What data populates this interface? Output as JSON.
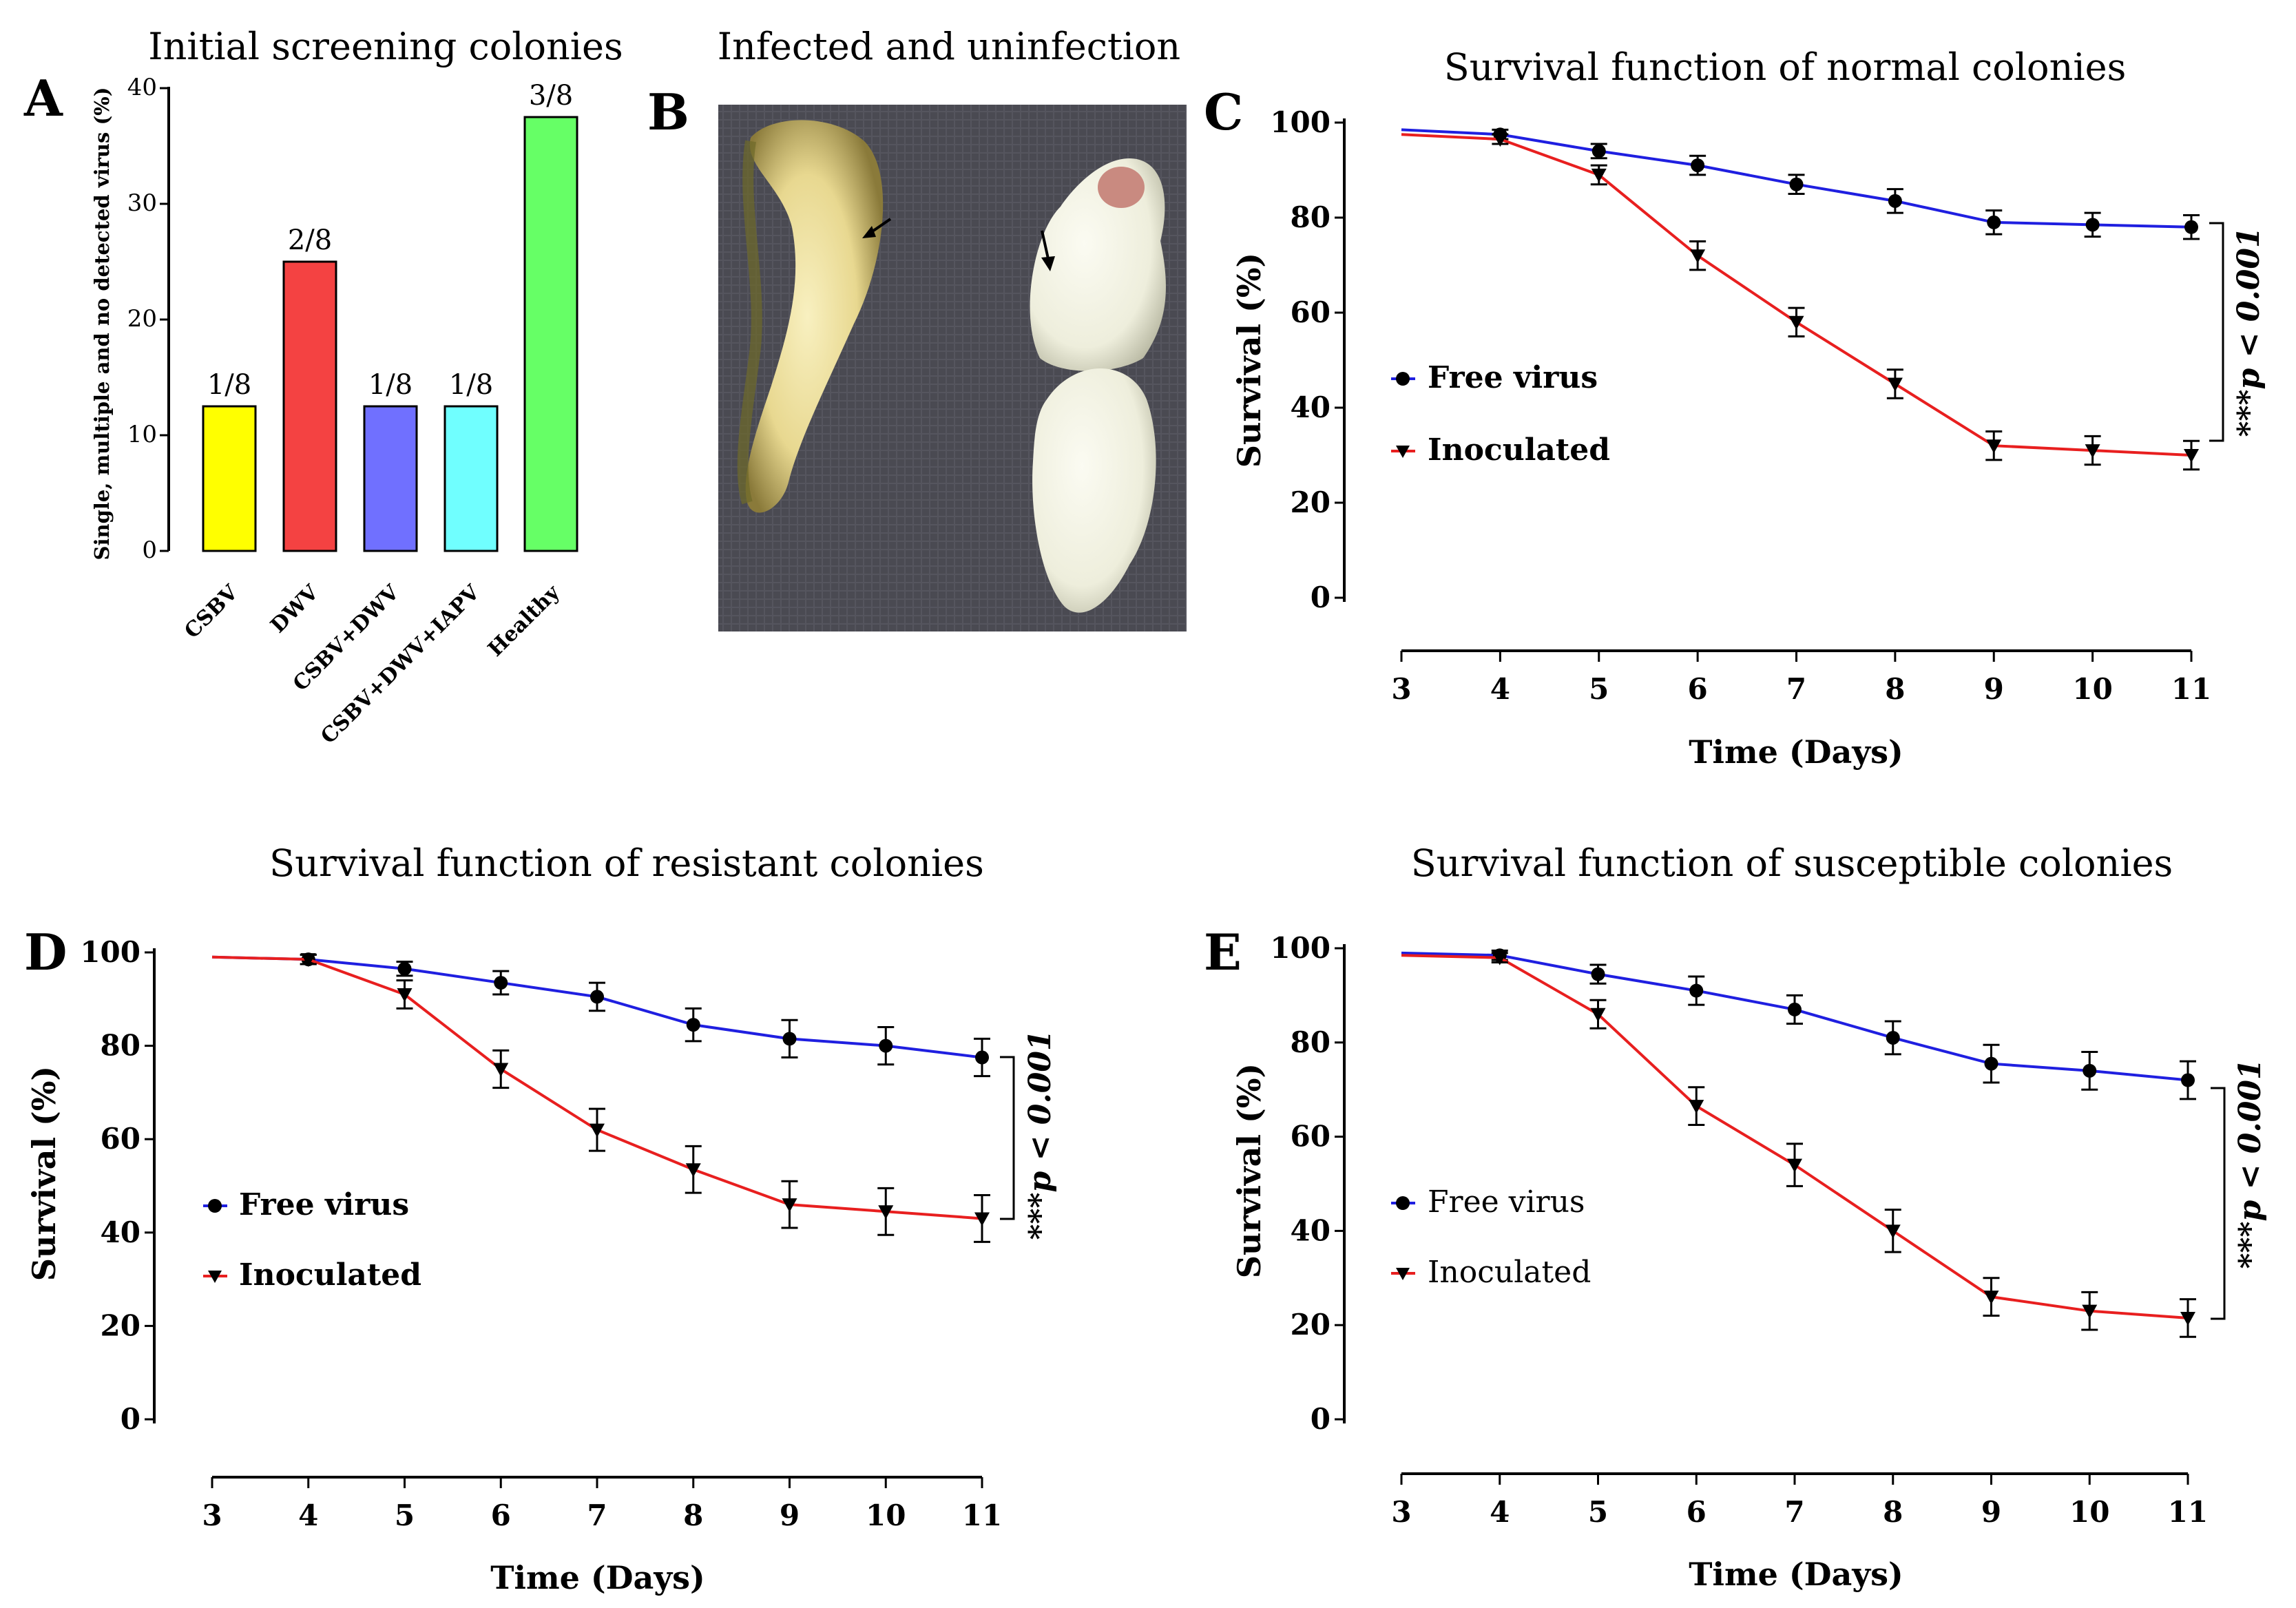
{
  "panels": {
    "A": {
      "letter": "A",
      "title": "Initial screening colonies",
      "ylabel": "Single, multiple and no detected  virus  (%)",
      "yticks": [
        0,
        10,
        20,
        30,
        40
      ]
    },
    "B": {
      "letter": "B",
      "title": "Infected and uninfection"
    },
    "C": {
      "letter": "C",
      "title": "Survival function of normal colonies",
      "ylabel": "Survival (%)",
      "xlabel": "Time (Days)",
      "legend": [
        "Free virus",
        "Inoculated"
      ],
      "pvalue": "***p < 0.001"
    },
    "D": {
      "letter": "D",
      "title": "Survival function of resistant colonies",
      "ylabel": "Survival (%)",
      "xlabel": "Time (Days)",
      "legend": [
        "Free virus",
        "Inoculated"
      ],
      "pvalue": "***p < 0.001"
    },
    "E": {
      "letter": "E",
      "title": "Survival function of susceptible colonies",
      "ylabel": "Survival (%)",
      "xlabel": "Time (Days)",
      "legend": [
        "Free virus",
        "Inoculated"
      ],
      "pvalue": "***p < 0.001"
    }
  },
  "colors": {
    "free_virus": "#1f1fe0",
    "inoculated": "#e81f1f",
    "bars": [
      "#ffff00",
      "#f44242",
      "#7070ff",
      "#70ffff",
      "#66ff66"
    ]
  },
  "chart_data": [
    {
      "id": "A",
      "type": "bar",
      "title": "Initial screening colonies",
      "ylabel": "Single, multiple and no detected  virus  (%)",
      "categories": [
        "CSBV",
        "DWV",
        "CSBV+DWV",
        "CSBV+DWV+IAPV",
        "Healthy"
      ],
      "values": [
        12.5,
        25,
        12.5,
        12.5,
        37.5
      ],
      "data_labels": [
        "1/8",
        "2/8",
        "1/8",
        "1/8",
        "3/8"
      ],
      "ylim": [
        0,
        40
      ]
    },
    {
      "id": "C",
      "type": "line",
      "title": "Survival function of normal colonies",
      "xlabel": "Time (Days)",
      "ylabel": "Survival (%)",
      "x": [
        3,
        4,
        5,
        6,
        7,
        8,
        9,
        10,
        11
      ],
      "xticks": [
        3,
        4,
        5,
        6,
        7,
        8,
        9,
        10,
        11
      ],
      "yticks": [
        0,
        20,
        40,
        60,
        80,
        100
      ],
      "xlim": [
        3,
        11
      ],
      "ylim": [
        0,
        100
      ],
      "series": [
        {
          "name": "Free virus",
          "values": [
            98.5,
            97.5,
            94,
            91,
            87,
            83.5,
            79,
            78.5,
            78
          ],
          "errors": [
            0,
            1,
            1.5,
            2,
            2,
            2.5,
            2.5,
            2.5,
            2.5
          ]
        },
        {
          "name": "Inoculated",
          "values": [
            97.5,
            96.5,
            89,
            72,
            58,
            45,
            32,
            31,
            30
          ],
          "errors": [
            0,
            1,
            2,
            3,
            3,
            3,
            3,
            3,
            3
          ]
        }
      ]
    },
    {
      "id": "D",
      "type": "line",
      "title": "Survival function of resistant colonies",
      "xlabel": "Time (Days)",
      "ylabel": "Survival (%)",
      "x": [
        3,
        4,
        5,
        6,
        7,
        8,
        9,
        10,
        11
      ],
      "xticks": [
        3,
        4,
        5,
        6,
        7,
        8,
        9,
        10,
        11
      ],
      "yticks": [
        0,
        20,
        40,
        60,
        80,
        100
      ],
      "xlim": [
        3,
        11
      ],
      "ylim": [
        0,
        100
      ],
      "series": [
        {
          "name": "Free virus",
          "values": [
            99,
            98.5,
            96.5,
            93.5,
            90.5,
            84.5,
            81.5,
            80,
            77.5
          ],
          "errors": [
            0,
            1,
            1.5,
            2.5,
            3,
            3.5,
            4,
            4,
            4
          ]
        },
        {
          "name": "Inoculated",
          "values": [
            99,
            98.5,
            91,
            75,
            62,
            53.5,
            46,
            44.5,
            43
          ],
          "errors": [
            0,
            1,
            3,
            4,
            4.5,
            5,
            5,
            5,
            5
          ]
        }
      ]
    },
    {
      "id": "E",
      "type": "line",
      "title": "Survival function of susceptible colonies",
      "xlabel": "Time (Days)",
      "ylabel": "Survival (%)",
      "x": [
        3,
        4,
        5,
        6,
        7,
        8,
        9,
        10,
        11
      ],
      "xticks": [
        3,
        4,
        5,
        6,
        7,
        8,
        9,
        10,
        11
      ],
      "yticks": [
        0,
        20,
        40,
        60,
        80,
        100
      ],
      "xlim": [
        3,
        11
      ],
      "ylim": [
        0,
        100
      ],
      "series": [
        {
          "name": "Free virus",
          "values": [
            99,
            98.5,
            94.5,
            91,
            87,
            81,
            75.5,
            74,
            72
          ],
          "errors": [
            0,
            1,
            2,
            3,
            3,
            3.5,
            4,
            4,
            4
          ]
        },
        {
          "name": "Inoculated",
          "values": [
            98.5,
            98,
            86,
            66.5,
            54,
            40,
            26,
            23,
            21.5
          ],
          "errors": [
            0,
            1,
            3,
            4,
            4.5,
            4.5,
            4,
            4,
            4
          ]
        }
      ]
    }
  ]
}
